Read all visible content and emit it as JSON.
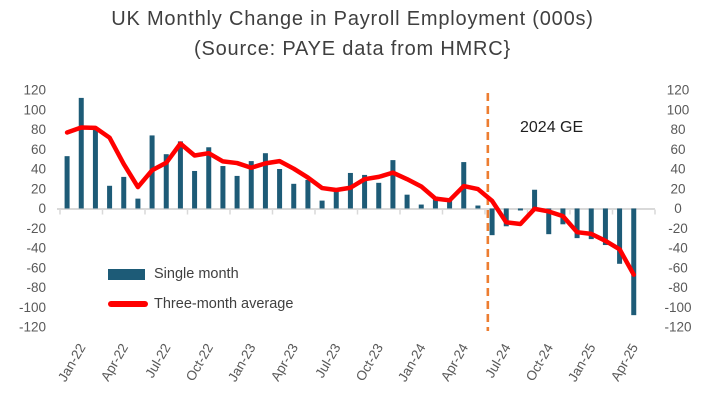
{
  "colors": {
    "bar": "#1D5B77",
    "average_line": "#FF0000",
    "event_line": "#ED7D31",
    "axis_line": "#D9D9D9",
    "tick_label": "#595959",
    "title_text": "#3F3F3F",
    "annotation_text": "#1F1F1F",
    "background": "#FFFFFF"
  },
  "chart_data": {
    "type": "bar+line",
    "title": "UK Monthly Change in Payroll Employment (000s)",
    "subtitle": "(Source: PAYE data from HMRC}",
    "categories": [
      "Jan-22",
      "Feb-22",
      "Mar-22",
      "Apr-22",
      "May-22",
      "Jun-22",
      "Jul-22",
      "Aug-22",
      "Sep-22",
      "Oct-22",
      "Nov-22",
      "Dec-22",
      "Jan-23",
      "Feb-23",
      "Mar-23",
      "Apr-23",
      "May-23",
      "Jun-23",
      "Jul-23",
      "Aug-23",
      "Sep-23",
      "Oct-23",
      "Nov-23",
      "Dec-23",
      "Jan-24",
      "Feb-24",
      "Mar-24",
      "Apr-24",
      "May-24",
      "Jun-24",
      "Jul-24",
      "Aug-24",
      "Sep-24",
      "Oct-24",
      "Nov-24",
      "Dec-24",
      "Jan-25",
      "Feb-25",
      "Mar-25",
      "Apr-25",
      "May-25"
    ],
    "series": [
      {
        "name": "Single month",
        "type": "bar",
        "color": "#1D5B77",
        "values": [
          53,
          112,
          80,
          23,
          32,
          10,
          74,
          55,
          68,
          38,
          62,
          43,
          33,
          48,
          56,
          40,
          25,
          29,
          8,
          19,
          36,
          34,
          26,
          49,
          14,
          4,
          12,
          9,
          47,
          3,
          -27,
          -18,
          -2,
          19,
          -26,
          -16,
          -30,
          -31,
          -37,
          -56,
          -108
        ]
      },
      {
        "name": "Three-month average",
        "type": "line",
        "color": "#FF0000",
        "values": [
          77,
          82,
          81.7,
          71.7,
          45,
          21.7,
          38.7,
          46.3,
          65.7,
          53.7,
          56,
          47.7,
          46,
          41.3,
          45.7,
          48,
          40.3,
          31.3,
          20.7,
          18.7,
          21,
          29.7,
          32,
          36.3,
          29.7,
          22.3,
          10,
          8.3,
          22.7,
          19.7,
          7.7,
          -14,
          -15.7,
          -0.3,
          -3,
          -7.7,
          -24,
          -25.7,
          -32.7,
          -41.3,
          -67
        ]
      }
    ],
    "x_tick_labels": [
      "Jan-22",
      "Apr-22",
      "Jul-22",
      "Oct-22",
      "Jan-23",
      "Apr-23",
      "Jul-23",
      "Oct-23",
      "Jan-24",
      "Apr-24",
      "Jul-24",
      "Oct-24",
      "Jan-25",
      "Apr-25"
    ],
    "x_tick_step_months": 3,
    "ylim": [
      -120,
      120
    ],
    "y_ticks": [
      120,
      100,
      80,
      60,
      40,
      20,
      0,
      -20,
      -40,
      -60,
      -80,
      -100,
      -120
    ],
    "y_axis_sides": "both",
    "grid": "none",
    "legend_position": "inside-bottom-left",
    "annotations": [
      {
        "type": "label",
        "text": "2024 GE"
      },
      {
        "type": "vline",
        "at_month": "Jul-24",
        "month_index": 30,
        "style": "dashed",
        "color": "#ED7D31"
      }
    ]
  }
}
